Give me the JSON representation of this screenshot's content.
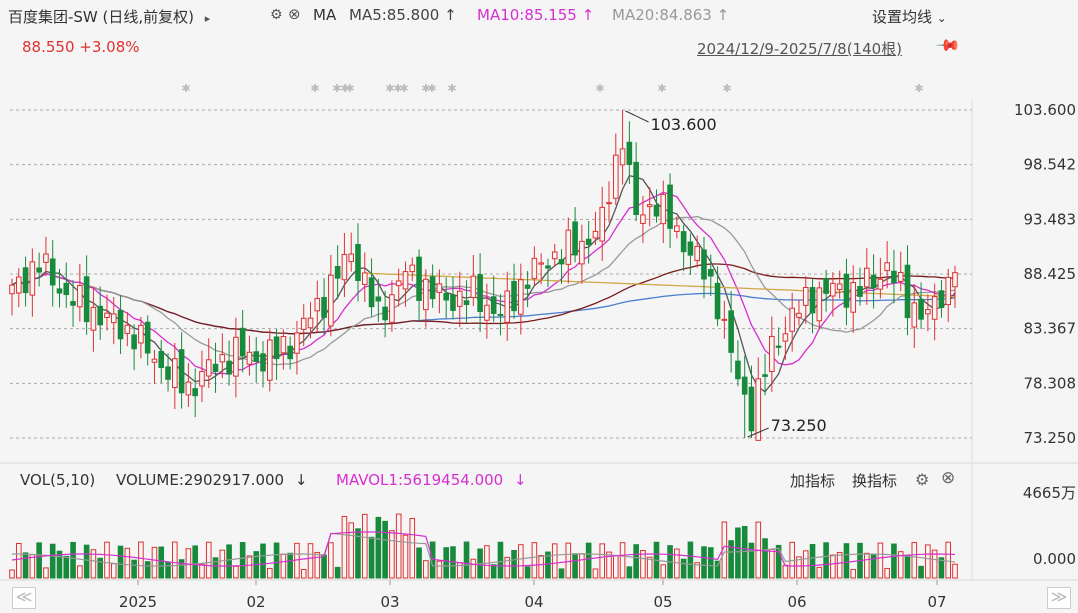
{
  "header": {
    "stock_title": "百度集团-SW (日线,前复权)",
    "caret": "▸",
    "ma_label": "MA",
    "ma5": "MA5:85.800",
    "ma10": "MA10:85.155",
    "ma20": "MA20:84.863",
    "up_arrow": "↑",
    "settings_label": "设置均线",
    "settings_caret": "⌄",
    "price": "88.550",
    "change": "+3.08%",
    "range": "2024/12/9-2025/7/8(140根)"
  },
  "volume_header": {
    "vol_label": "VOL(5,10)",
    "volume": "VOLUME:2902917.000",
    "down_arrow": "↓",
    "mavol": "MAVOL1:5619454.000",
    "add_indicator": "加指标",
    "switch_indicator": "换指标"
  },
  "colors": {
    "up": "#e03131",
    "down": "#178a3c",
    "ma5": "#555555",
    "ma10": "#d62fd0",
    "ma20": "#999999",
    "ma60": "#7a1b1b",
    "ma120": "#4a7fd0",
    "ma250": "#d1a84a"
  },
  "chart_data": {
    "type": "candlestick",
    "price_axis": {
      "ticks": [
        "103.600",
        "98.542",
        "93.483",
        "88.425",
        "83.367",
        "78.308",
        "73.250"
      ],
      "range": [
        73.25,
        103.6
      ]
    },
    "volume_axis": {
      "ticks": [
        "4665万",
        "0.000"
      ]
    },
    "x_ticks": [
      "2025",
      "02",
      "03",
      "04",
      "05",
      "06",
      "07"
    ],
    "annotations": {
      "high": "103.600",
      "low": "73.250"
    },
    "summary": {
      "bars": 140,
      "high": 103.6,
      "low": 73.25,
      "last_close": 88.55,
      "change_pct": 3.08,
      "ma5": 85.8,
      "ma10": 85.155,
      "ma20": 84.863
    },
    "grid": true
  },
  "nav": {
    "left": "≪",
    "right": "≫"
  }
}
